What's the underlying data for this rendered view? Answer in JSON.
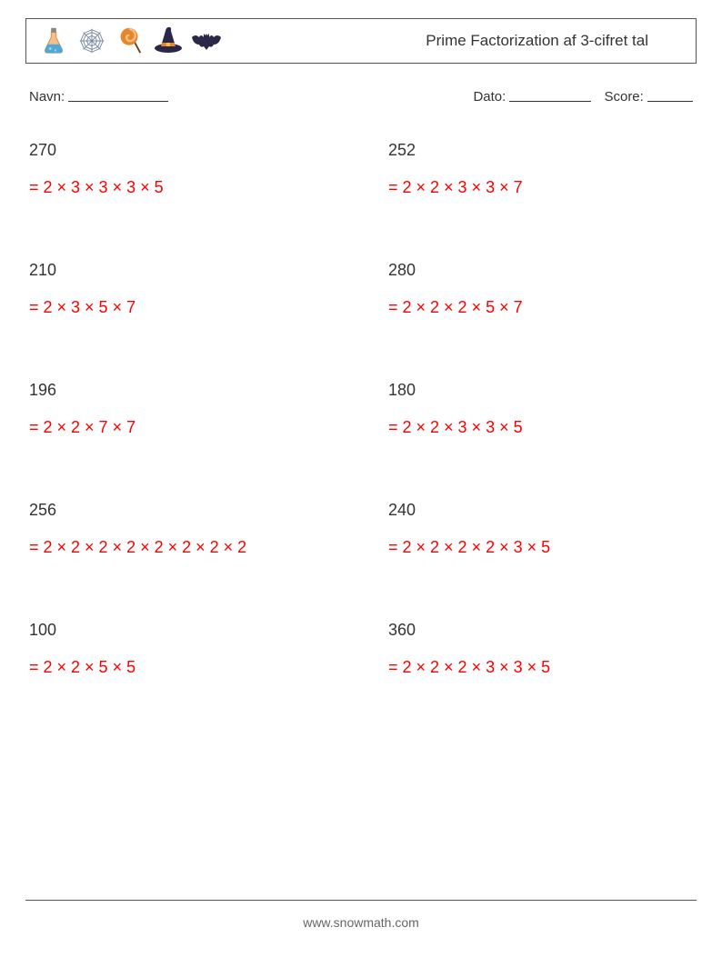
{
  "header": {
    "title": "Prime Factorization af 3-cifret tal",
    "icons": [
      {
        "name": "flask-icon",
        "body_color": "#e8a05a",
        "body_color2": "#f5c088",
        "liquid_color": "#4fa8d8",
        "cork_color": "#888888"
      },
      {
        "name": "spiderweb-icon",
        "stroke": "#7a8aa0"
      },
      {
        "name": "lollipop-icon",
        "candy_color": "#e8862a",
        "swirl_color": "#f5c088",
        "stick_color": "#6b4020"
      },
      {
        "name": "witch-hat-icon",
        "hat_color": "#2a2848",
        "band_color": "#e8862a"
      },
      {
        "name": "bat-icon",
        "body_color": "#2a2848"
      }
    ]
  },
  "meta": {
    "name_label": "Navn:",
    "name_underline_width": 110,
    "date_label": "Dato:",
    "date_underline_width": 90,
    "score_label": "Score:",
    "score_underline_width": 50
  },
  "problems": {
    "rows": [
      {
        "left": {
          "n": "270",
          "ans": "= 2 × 3 × 3 × 3 × 5"
        },
        "right": {
          "n": "252",
          "ans": "= 2 × 2 × 3 × 3 × 7"
        }
      },
      {
        "left": {
          "n": "210",
          "ans": "= 2 × 3 × 5 × 7"
        },
        "right": {
          "n": "280",
          "ans": "= 2 × 2 × 2 × 5 × 7"
        }
      },
      {
        "left": {
          "n": "196",
          "ans": "= 2 × 2 × 7 × 7"
        },
        "right": {
          "n": "180",
          "ans": "= 2 × 2 × 3 × 3 × 5"
        }
      },
      {
        "left": {
          "n": "256",
          "ans": "= 2 × 2 × 2 × 2 × 2 × 2 × 2 × 2"
        },
        "right": {
          "n": "240",
          "ans": "= 2 × 2 × 2 × 2 × 3 × 5"
        }
      },
      {
        "left": {
          "n": "100",
          "ans": "= 2 × 2 × 5 × 5"
        },
        "right": {
          "n": "360",
          "ans": "= 2 × 2 × 2 × 3 × 3 × 5"
        }
      }
    ],
    "number_color": "#333333",
    "answer_color": "#ff0000",
    "fontsize": 18
  },
  "footer": {
    "url": "www.snowmath.com"
  },
  "colors": {
    "background": "#ffffff",
    "border": "#555555",
    "text": "#333333",
    "footer_text": "#666666"
  }
}
